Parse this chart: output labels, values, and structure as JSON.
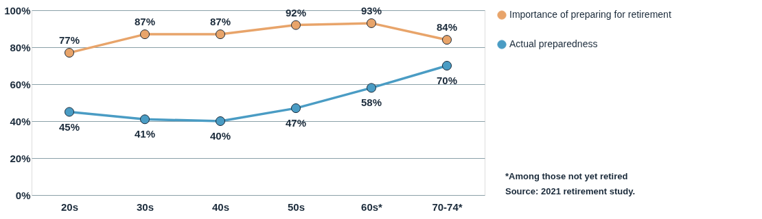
{
  "chart_data": {
    "type": "line",
    "categories": [
      "20s",
      "30s",
      "40s",
      "50s",
      "60s*",
      "70-74*"
    ],
    "series": [
      {
        "name": "Importance of preparing for retirement",
        "color": "#e8a46a",
        "values": [
          77,
          87,
          87,
          92,
          93,
          84
        ],
        "value_labels": [
          "77%",
          "87%",
          "87%",
          "92%",
          "93%",
          "84%"
        ]
      },
      {
        "name": "Actual preparedness",
        "color": "#4a9cc4",
        "values": [
          45,
          41,
          40,
          47,
          58,
          70
        ],
        "value_labels": [
          "45%",
          "41%",
          "40%",
          "47%",
          "58%",
          "70%"
        ]
      }
    ],
    "ylim": [
      0,
      100
    ],
    "yticks": [
      {
        "value": 0,
        "label": "0%"
      },
      {
        "value": 20,
        "label": "20%"
      },
      {
        "value": 40,
        "label": "40%"
      },
      {
        "value": 60,
        "label": "60%"
      },
      {
        "value": 80,
        "label": "80%"
      },
      {
        "value": 100,
        "label": "100%"
      }
    ],
    "grid": "y",
    "legend": "right",
    "marker": "circle",
    "line_style": "solid",
    "annotations": [
      "*Among those not yet retired",
      "Source: 2021 retirement study."
    ]
  }
}
